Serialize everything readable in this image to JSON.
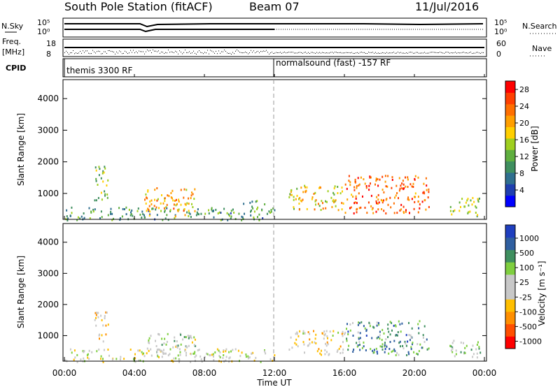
{
  "header": {
    "station": "South Pole Station (fitACF)",
    "beam": "Beam 07",
    "date": "11/Jul/2016"
  },
  "noise_panel": {
    "left_label": "N.Sky",
    "right_label": "N.Search",
    "left_ticks": [
      "10^5",
      "10^0"
    ],
    "right_ticks": [
      "10^5",
      "10^0"
    ]
  },
  "freq_panel": {
    "left_label_1": "Freq.",
    "left_label_2": "[MHz]",
    "right_label": "Nave",
    "left_ticks": [
      "18",
      "8"
    ],
    "right_ticks": [
      "60",
      "0"
    ]
  },
  "cpid_panel": {
    "label": "CPID",
    "programs": [
      {
        "name": "themis 3300 RF",
        "start_hour": 0,
        "end_hour": 12
      },
      {
        "name": "normalsound (fast) -157 RF",
        "start_hour": 12,
        "end_hour": 24
      }
    ]
  },
  "x_axis": {
    "label": "Time UT",
    "tick_labels": [
      "00:00",
      "04:00",
      "08:00",
      "12:00",
      "16:00",
      "20:00",
      "00:00"
    ]
  },
  "chart_data": [
    {
      "type": "heatmap",
      "title": "",
      "xlabel": "Time UT",
      "ylabel": "Slant Range [km]",
      "xlim_hours": [
        0,
        24
      ],
      "ylim_km": [
        180,
        4600
      ],
      "y_ticks": [
        "1000",
        "2000",
        "3000",
        "4000"
      ],
      "colorbar": {
        "label": "Power [dB]",
        "ticks": [
          "4",
          "8",
          "12",
          "16",
          "20",
          "24",
          "28"
        ],
        "range": [
          0,
          30
        ],
        "colors": [
          "#0000ff",
          "#1f3fb0",
          "#2f6f8f",
          "#3f8f5f",
          "#5faf3f",
          "#9fcf1f",
          "#ffcf00",
          "#ff9f00",
          "#ff6f00",
          "#ff3f00",
          "#ff0000"
        ]
      },
      "regions": [
        {
          "t0": 0.0,
          "t1": 12.0,
          "r0": 180,
          "r1": 600,
          "v": 10
        },
        {
          "t0": 1.7,
          "t1": 2.5,
          "r0": 800,
          "r1": 2000,
          "v": 14
        },
        {
          "t0": 4.5,
          "t1": 7.5,
          "r0": 300,
          "r1": 1200,
          "v": 20
        },
        {
          "t0": 10.2,
          "t1": 11.5,
          "r0": 600,
          "r1": 800,
          "v": 12
        },
        {
          "t0": 12.8,
          "t1": 16.0,
          "r0": 500,
          "r1": 1300,
          "v": 18
        },
        {
          "t0": 16.0,
          "t1": 20.8,
          "r0": 400,
          "r1": 1600,
          "v": 24
        },
        {
          "t0": 22.0,
          "t1": 23.8,
          "r0": 300,
          "r1": 900,
          "v": 14
        }
      ]
    },
    {
      "type": "heatmap",
      "title": "",
      "xlabel": "Time UT",
      "ylabel": "Slant Range [km]",
      "xlim_hours": [
        0,
        24
      ],
      "ylim_km": [
        180,
        4600
      ],
      "y_ticks": [
        "1000",
        "2000",
        "3000",
        "4000"
      ],
      "colorbar": {
        "label": "Velocity [m s⁻¹]",
        "ticks": [
          "1000",
          "500",
          "100",
          "25",
          "-25",
          "-100",
          "-500",
          "-1000"
        ],
        "range": [
          -1250,
          1250
        ],
        "colors": [
          "#ff0000",
          "#ff4f00",
          "#ff8f00",
          "#ffbf00",
          "#c8c8c8",
          "#c8c8c8",
          "#7fcf3f",
          "#3f8f5f",
          "#2f5fa0",
          "#1f3fbf"
        ]
      },
      "regions": [
        {
          "t0": 0.0,
          "t1": 12.0,
          "r0": 180,
          "r1": 600,
          "v": 0
        },
        {
          "t0": 1.7,
          "t1": 2.5,
          "r0": 800,
          "r1": 1800,
          "v": -200
        },
        {
          "t0": 4.5,
          "t1": 7.5,
          "r0": 300,
          "r1": 1100,
          "v": 150
        },
        {
          "t0": 12.8,
          "t1": 16.0,
          "r0": 400,
          "r1": 1200,
          "v": -150
        },
        {
          "t0": 16.0,
          "t1": 20.8,
          "r0": 400,
          "r1": 1500,
          "v": 600
        },
        {
          "t0": 22.0,
          "t1": 23.8,
          "r0": 300,
          "r1": 900,
          "v": 200
        }
      ]
    }
  ]
}
